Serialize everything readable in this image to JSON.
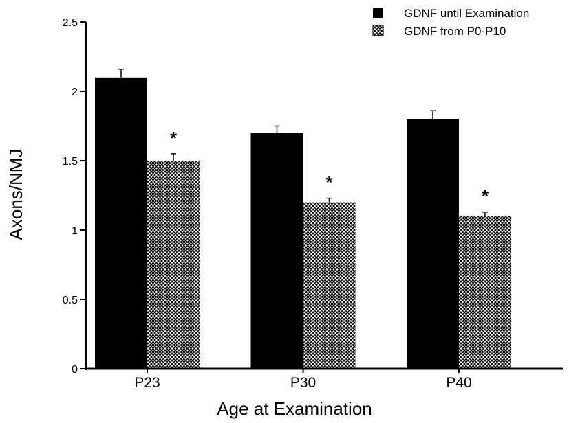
{
  "chart_data": {
    "type": "bar",
    "categories": [
      "P23",
      "P30",
      "P40"
    ],
    "series": [
      {
        "name": "GDNF until Examination",
        "values": [
          2.1,
          1.7,
          1.8
        ],
        "errors": [
          0.06,
          0.05,
          0.06
        ],
        "color": "#000000",
        "pattern": "solid"
      },
      {
        "name": "GDNF from P0-P10",
        "values": [
          1.5,
          1.2,
          1.1
        ],
        "errors": [
          0.05,
          0.03,
          0.03
        ],
        "color": "#ffffff",
        "pattern": "crosshatch"
      }
    ],
    "annotations": [
      "*",
      "*",
      "*"
    ],
    "xlabel": "Age at Examination",
    "ylabel": "Axons/NMJ",
    "ylim": [
      0,
      2.5
    ],
    "yticks": [
      0,
      0.5,
      1,
      1.5,
      2,
      2.5
    ],
    "ytick_labels": [
      "0",
      "0.5",
      "1",
      "1.5",
      "2",
      "2.5"
    ],
    "grid": false,
    "legend_position": "top-right"
  }
}
